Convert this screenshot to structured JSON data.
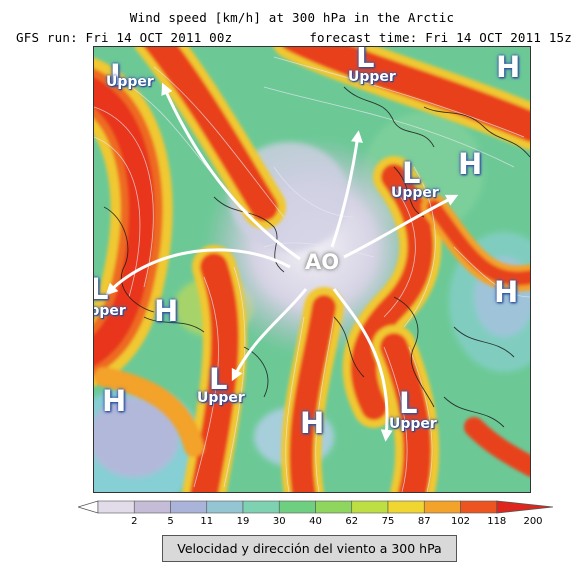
{
  "header": {
    "title": "Wind speed [km/h] at 300 hPa in the Arctic",
    "gfs_run": "GFS run: Fri 14 OCT 2011 00z",
    "forecast_time": "forecast time: Fri 14 OCT 2011 15z"
  },
  "map": {
    "center_label": "AO",
    "high_label": "H",
    "low_label": "L",
    "low_sublabel": "Upper",
    "pressure_systems": [
      {
        "type": "low",
        "region": "northwest"
      },
      {
        "type": "low",
        "region": "north"
      },
      {
        "type": "high",
        "region": "northeast corner"
      },
      {
        "type": "low",
        "region": "east"
      },
      {
        "type": "high",
        "region": "east"
      },
      {
        "type": "low",
        "region": "west"
      },
      {
        "type": "high",
        "region": "west"
      },
      {
        "type": "high",
        "region": "east-southeast"
      },
      {
        "type": "low",
        "region": "southwest"
      },
      {
        "type": "high",
        "region": "southwest corner"
      },
      {
        "type": "high",
        "region": "south"
      },
      {
        "type": "low",
        "region": "southeast"
      }
    ]
  },
  "legend": {
    "ticks": [
      "2",
      "5",
      "11",
      "19",
      "30",
      "40",
      "62",
      "75",
      "87",
      "102",
      "118",
      "200"
    ],
    "colors": [
      "#ffffff",
      "#e2dcea",
      "#c5bcd8",
      "#aab3d9",
      "#94c5d3",
      "#7ed1b1",
      "#6fcf80",
      "#8fd65f",
      "#bedf43",
      "#f0d630",
      "#f3a22a",
      "#ec5520",
      "#e0261c"
    ],
    "caption": "Velocidad y dirección del viento a 300 hPa"
  }
}
